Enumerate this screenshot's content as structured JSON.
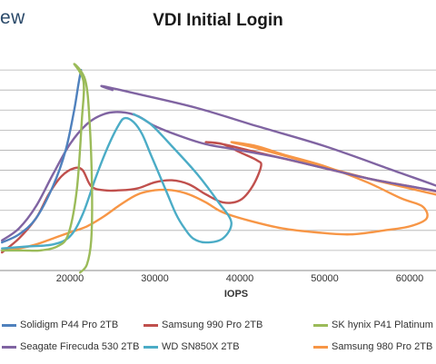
{
  "header": {
    "brand": "ew"
  },
  "chart_data": {
    "type": "line",
    "title": "VDI Initial Login",
    "xlabel": "IOPS",
    "ylabel": "",
    "xlim": [
      12000,
      65000
    ],
    "ylim": [
      0,
      11
    ],
    "x_ticks": [
      20000,
      30000,
      40000,
      50000,
      60000
    ],
    "x_tick_labels": [
      "20000",
      "30000",
      "40000",
      "50000",
      "60000"
    ],
    "y_gridlines": [
      1,
      2,
      3,
      4,
      5,
      6,
      7,
      8,
      9,
      10
    ],
    "grid": true,
    "legend_position": "bottom",
    "series": [
      {
        "name": "Solidigm P44 Pro 2TB",
        "color": "#4f81bd",
        "points": [
          [
            12000,
            1.4
          ],
          [
            14000,
            1.8
          ],
          [
            16000,
            2.6
          ],
          [
            18000,
            4.2
          ],
          [
            19500,
            6.0
          ],
          [
            20500,
            8.0
          ],
          [
            21000,
            9.3
          ],
          [
            21300,
            10.0
          ]
        ]
      },
      {
        "name": "Samsung 990 Pro 2TB",
        "color": "#c0504d",
        "points": [
          [
            12000,
            0.9
          ],
          [
            14000,
            1.6
          ],
          [
            16000,
            2.6
          ],
          [
            17500,
            3.8
          ],
          [
            19000,
            4.7
          ],
          [
            20500,
            5.1
          ],
          [
            21500,
            5.0
          ],
          [
            22500,
            4.2
          ],
          [
            24000,
            4.0
          ],
          [
            26000,
            4.0
          ],
          [
            28000,
            4.1
          ],
          [
            30000,
            4.4
          ],
          [
            32000,
            4.5
          ],
          [
            34000,
            4.3
          ],
          [
            36000,
            3.8
          ],
          [
            38000,
            3.4
          ],
          [
            40000,
            3.5
          ],
          [
            41500,
            4.2
          ],
          [
            42500,
            5.2
          ],
          [
            42000,
            5.5
          ],
          [
            40000,
            5.9
          ],
          [
            38000,
            6.3
          ],
          [
            36000,
            6.4
          ],
          [
            38000,
            6.3
          ],
          [
            41000,
            6.0
          ],
          [
            45000,
            5.6
          ],
          [
            50000,
            5.1
          ],
          [
            55000,
            4.6
          ],
          [
            60000,
            4.2
          ],
          [
            65000,
            3.8
          ]
        ]
      },
      {
        "name": "SK hynix P41 Platinum",
        "color": "#9bbb59",
        "points": [
          [
            12000,
            1.0
          ],
          [
            14500,
            1.0
          ],
          [
            16500,
            1.0
          ],
          [
            18500,
            1.2
          ],
          [
            19800,
            1.8
          ],
          [
            20800,
            4.0
          ],
          [
            21400,
            7.5
          ],
          [
            21600,
            9.4
          ],
          [
            20500,
            10.3
          ],
          [
            21800,
            9.5
          ],
          [
            22300,
            7.5
          ],
          [
            22600,
            4.0
          ],
          [
            22500,
            1.5
          ],
          [
            22000,
            0.3
          ],
          [
            21200,
            -0.1
          ]
        ]
      },
      {
        "name": "Seagate Firecuda 530 2TB",
        "color": "#8064a2",
        "points": [
          [
            12000,
            1.5
          ],
          [
            14000,
            2.1
          ],
          [
            16000,
            3.2
          ],
          [
            18000,
            4.8
          ],
          [
            20000,
            6.3
          ],
          [
            22000,
            7.3
          ],
          [
            24000,
            7.8
          ],
          [
            26000,
            7.9
          ],
          [
            28000,
            7.7
          ],
          [
            30000,
            7.2
          ],
          [
            33000,
            6.7
          ],
          [
            36000,
            6.3
          ],
          [
            40000,
            6.0
          ],
          [
            45000,
            5.6
          ],
          [
            50000,
            5.1
          ],
          [
            55000,
            4.6
          ],
          [
            60000,
            4.2
          ],
          [
            65000,
            3.9
          ],
          [
            58000,
            5.0
          ],
          [
            50000,
            6.2
          ],
          [
            42000,
            7.2
          ],
          [
            35000,
            8.1
          ],
          [
            28000,
            8.8
          ],
          [
            23800,
            9.2
          ],
          [
            25000,
            9.0
          ]
        ]
      },
      {
        "name": "WD SN850X 2TB",
        "color": "#4bacc6",
        "points": [
          [
            12000,
            1.1
          ],
          [
            15000,
            1.2
          ],
          [
            18000,
            1.3
          ],
          [
            20000,
            1.7
          ],
          [
            21500,
            2.8
          ],
          [
            23000,
            4.6
          ],
          [
            24500,
            6.2
          ],
          [
            25800,
            7.3
          ],
          [
            26500,
            7.6
          ],
          [
            27500,
            7.4
          ],
          [
            28500,
            6.8
          ],
          [
            29500,
            5.8
          ],
          [
            30500,
            4.8
          ],
          [
            31500,
            3.8
          ],
          [
            32500,
            2.8
          ],
          [
            33500,
            2.1
          ],
          [
            34500,
            1.6
          ],
          [
            36000,
            1.4
          ],
          [
            38000,
            1.6
          ],
          [
            39000,
            2.4
          ],
          [
            37500,
            3.4
          ],
          [
            35000,
            4.8
          ],
          [
            32000,
            6.2
          ],
          [
            29500,
            7.3
          ],
          [
            27500,
            7.8
          ]
        ]
      },
      {
        "name": "Samsung 980 Pro 2TB",
        "color": "#f79646",
        "points": [
          [
            12000,
            1.0
          ],
          [
            14000,
            1.1
          ],
          [
            16000,
            1.3
          ],
          [
            18000,
            1.6
          ],
          [
            20000,
            1.9
          ],
          [
            22000,
            2.2
          ],
          [
            24000,
            2.7
          ],
          [
            26000,
            3.3
          ],
          [
            28000,
            3.8
          ],
          [
            30000,
            4.0
          ],
          [
            32000,
            4.0
          ],
          [
            34000,
            3.8
          ],
          [
            36000,
            3.4
          ],
          [
            38000,
            2.9
          ],
          [
            41000,
            2.5
          ],
          [
            45000,
            2.1
          ],
          [
            49000,
            1.9
          ],
          [
            53000,
            1.8
          ],
          [
            57000,
            2.0
          ],
          [
            60000,
            2.2
          ],
          [
            62000,
            2.6
          ],
          [
            61500,
            3.2
          ],
          [
            59000,
            3.6
          ],
          [
            55000,
            4.4
          ],
          [
            50000,
            5.2
          ],
          [
            45000,
            5.8
          ],
          [
            42000,
            6.2
          ],
          [
            39000,
            6.4
          ],
          [
            42000,
            6.1
          ],
          [
            48000,
            5.4
          ],
          [
            55000,
            4.6
          ],
          [
            65000,
            3.6
          ]
        ]
      }
    ]
  }
}
